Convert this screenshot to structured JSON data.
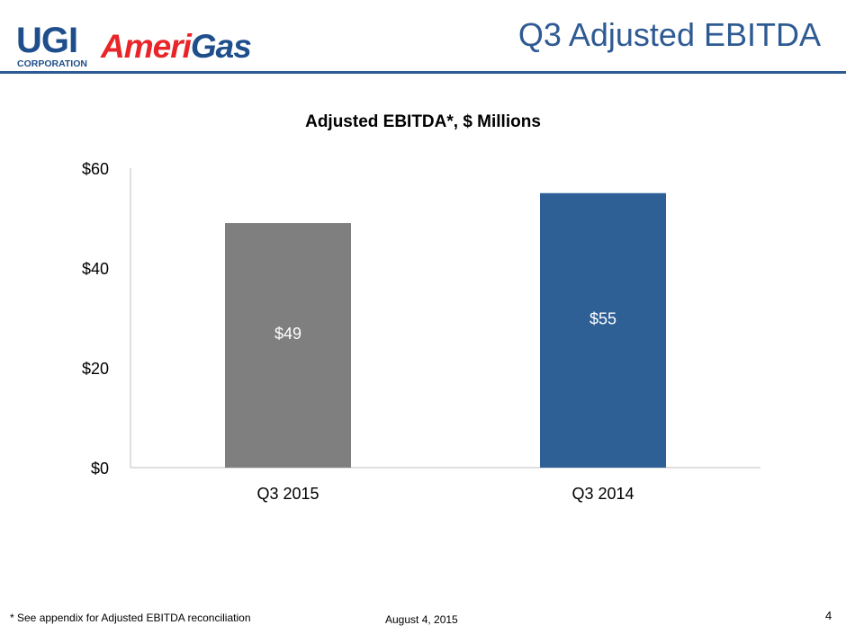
{
  "header": {
    "logo_text": "UGI AmeriGas",
    "logo_ugi": "UGI",
    "logo_corp": "CORPORATION",
    "logo_brand_a": "Ameri",
    "logo_brand_b": "Gas",
    "title": "Q3 Adjusted EBITDA"
  },
  "footer": {
    "footnote": "* See appendix for Adjusted EBITDA reconciliation",
    "date": "August 4, 2015",
    "page_number": "4"
  },
  "colors": {
    "title": "#2e5a93",
    "bar_q3_2015": "#7f7f7f",
    "bar_q3_2014": "#2e6096",
    "axis": "#bfbfbf",
    "logo_blue": "#1f4e8c",
    "logo_red": "#e8262a"
  },
  "chart_data": {
    "type": "bar",
    "title": "Adjusted EBITDA*, $ Millions",
    "categories": [
      "Q3 2015",
      "Q3 2014"
    ],
    "values": [
      49,
      55
    ],
    "data_labels": [
      "$49",
      "$55"
    ],
    "ylim": [
      0,
      60
    ],
    "yticks": [
      0,
      20,
      40,
      60
    ],
    "ytick_labels": [
      "$0",
      "$20",
      "$40",
      "$60"
    ],
    "xlabel": "",
    "ylabel": "",
    "grid": false,
    "legend": "none"
  }
}
